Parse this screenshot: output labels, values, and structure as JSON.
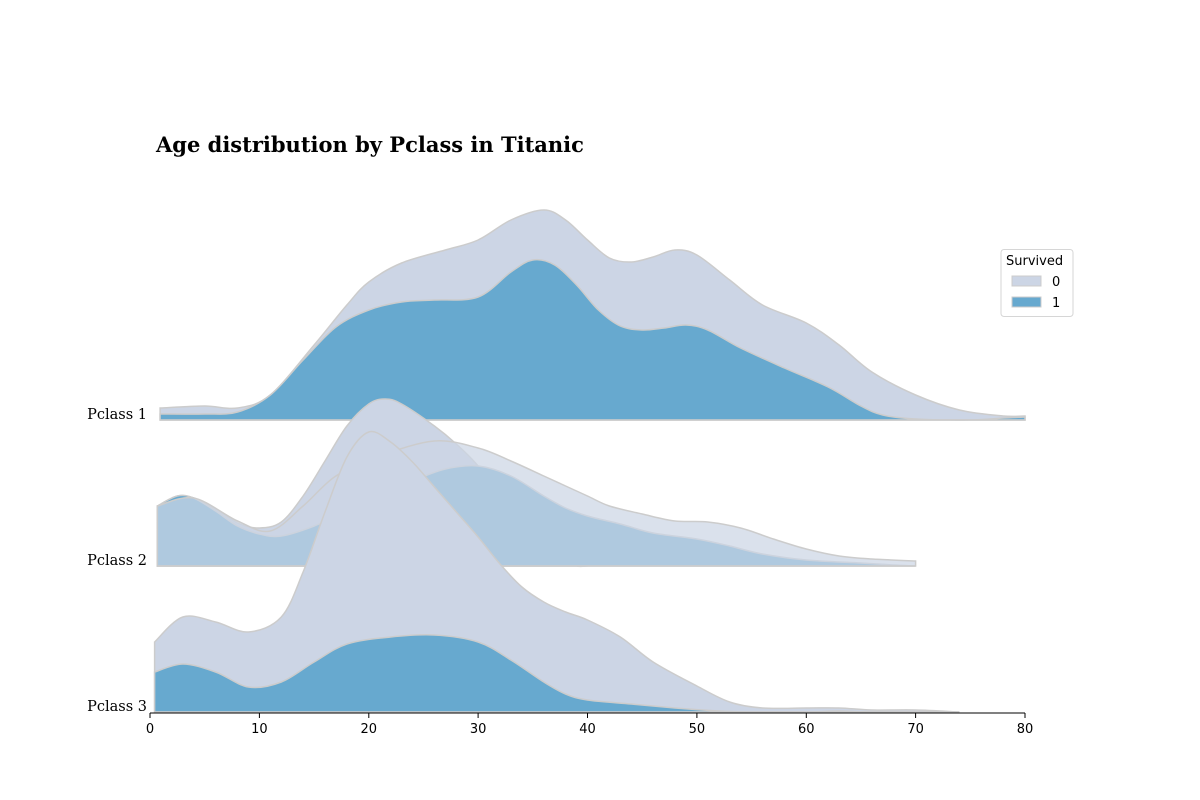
{
  "chart_data": {
    "type": "area",
    "title": "Age distribution by Pclass in Titanic",
    "xlabel": "",
    "ylabel": "",
    "xlim": [
      0,
      80
    ],
    "x_ticks": [
      "0",
      "10",
      "20",
      "30",
      "40",
      "50",
      "60",
      "70",
      "80"
    ],
    "grid": false,
    "legend": {
      "title": "Survived",
      "placement": "right",
      "entries": [
        "0",
        "1"
      ]
    },
    "colors": {
      "0": "#ccd5e5",
      "1": "#67a9cf",
      "edge": "#cccccc"
    },
    "rows": [
      {
        "label": "Pclass 1",
        "x_range": [
          0.92,
          80
        ],
        "series": [
          {
            "name": "0",
            "points": [
              [
                0.92,
                0.012
              ],
              [
                5,
                0.014
              ],
              [
                8,
                0.012
              ],
              [
                11,
                0.025
              ],
              [
                15,
                0.075
              ],
              [
                18,
                0.115
              ],
              [
                20,
                0.138
              ],
              [
                23,
                0.157
              ],
              [
                27,
                0.17
              ],
              [
                30,
                0.18
              ],
              [
                33,
                0.2
              ],
              [
                36,
                0.21
              ],
              [
                38,
                0.2
              ],
              [
                40,
                0.18
              ],
              [
                42,
                0.162
              ],
              [
                44,
                0.158
              ],
              [
                46,
                0.163
              ],
              [
                48,
                0.17
              ],
              [
                50,
                0.165
              ],
              [
                53,
                0.14
              ],
              [
                56,
                0.115
              ],
              [
                60,
                0.097
              ],
              [
                63,
                0.075
              ],
              [
                66,
                0.048
              ],
              [
                70,
                0.025
              ],
              [
                74,
                0.01
              ],
              [
                78,
                0.004
              ],
              [
                80,
                0.004
              ]
            ]
          },
          {
            "name": "1",
            "points": [
              [
                0.92,
                0.006
              ],
              [
                5,
                0.006
              ],
              [
                8,
                0.008
              ],
              [
                11,
                0.025
              ],
              [
                14,
                0.06
              ],
              [
                17,
                0.093
              ],
              [
                20,
                0.11
              ],
              [
                23,
                0.118
              ],
              [
                26,
                0.12
              ],
              [
                30,
                0.123
              ],
              [
                33,
                0.148
              ],
              [
                35,
                0.16
              ],
              [
                37,
                0.155
              ],
              [
                39,
                0.135
              ],
              [
                41,
                0.11
              ],
              [
                43,
                0.094
              ],
              [
                45,
                0.09
              ],
              [
                47,
                0.092
              ],
              [
                49,
                0.095
              ],
              [
                51,
                0.09
              ],
              [
                54,
                0.072
              ],
              [
                58,
                0.052
              ],
              [
                62,
                0.033
              ],
              [
                65,
                0.014
              ],
              [
                67,
                0.005
              ],
              [
                70,
                0.001
              ],
              [
                75,
                0.0
              ],
              [
                78,
                0.002
              ],
              [
                80,
                0.003
              ]
            ]
          }
        ]
      },
      {
        "label": "Pclass 2",
        "x_range": [
          0.67,
          70
        ],
        "series": [
          {
            "name": "0",
            "points": [
              [
                0.67,
                0.06
              ],
              [
                2.5,
                0.07
              ],
              [
                4,
                0.068
              ],
              [
                6,
                0.057
              ],
              [
                8,
                0.043
              ],
              [
                10,
                0.038
              ],
              [
                12,
                0.044
              ],
              [
                14,
                0.07
              ],
              [
                16,
                0.105
              ],
              [
                18,
                0.14
              ],
              [
                20,
                0.162
              ],
              [
                21.5,
                0.167
              ],
              [
                23,
                0.162
              ],
              [
                26,
                0.14
              ],
              [
                28,
                0.122
              ],
              [
                30,
                0.1
              ],
              [
                32,
                0.07
              ],
              [
                34,
                0.045
              ],
              [
                36,
                0.025
              ],
              [
                38,
                0.005
              ],
              [
                39,
                0.0
              ],
              [
                40,
                0.0
              ]
            ]
          },
          {
            "name": "1",
            "points": [
              [
                0.67,
                0.06
              ],
              [
                2.5,
                0.07
              ],
              [
                4,
                0.068
              ],
              [
                6,
                0.055
              ],
              [
                8,
                0.04
              ],
              [
                10,
                0.032
              ],
              [
                12,
                0.03
              ],
              [
                15,
                0.04
              ],
              [
                18,
                0.055
              ],
              [
                21,
                0.07
              ],
              [
                24,
                0.085
              ],
              [
                27,
                0.097
              ],
              [
                30,
                0.1
              ],
              [
                33,
                0.09
              ],
              [
                36,
                0.07
              ],
              [
                38,
                0.058
              ],
              [
                40,
                0.05
              ],
              [
                43,
                0.042
              ],
              [
                46,
                0.033
              ],
              [
                50,
                0.027
              ],
              [
                53,
                0.02
              ],
              [
                56,
                0.012
              ],
              [
                60,
                0.006
              ],
              [
                65,
                0.003
              ],
              [
                68,
                0.001
              ],
              [
                70,
                0.0
              ]
            ]
          },
          {
            "name": "0",
            "points": [
              [
                0.67,
                0.06
              ],
              [
                4,
                0.068
              ],
              [
                8,
                0.045
              ],
              [
                11,
                0.035
              ],
              [
                14,
                0.06
              ],
              [
                17,
                0.09
              ],
              [
                21,
                0.11
              ],
              [
                26,
                0.125
              ],
              [
                30,
                0.118
              ],
              [
                33,
                0.105
              ],
              [
                36,
                0.09
              ],
              [
                38,
                0.08
              ],
              [
                40,
                0.07
              ],
              [
                42,
                0.06
              ],
              [
                45,
                0.052
              ],
              [
                48,
                0.045
              ],
              [
                51,
                0.044
              ],
              [
                54,
                0.038
              ],
              [
                57,
                0.027
              ],
              [
                60,
                0.017
              ],
              [
                63,
                0.01
              ],
              [
                66,
                0.007
              ],
              [
                70,
                0.005
              ]
            ]
          }
        ]
      },
      {
        "label": "Pclass 3",
        "x_range": [
          0.42,
          74
        ],
        "series": [
          {
            "name": "0",
            "points": [
              [
                0.42,
                0.07
              ],
              [
                3,
                0.095
              ],
              [
                6,
                0.09
              ],
              [
                9,
                0.08
              ],
              [
                12,
                0.095
              ],
              [
                14,
                0.14
              ],
              [
                16,
                0.2
              ],
              [
                18,
                0.255
              ],
              [
                20,
                0.28
              ],
              [
                22,
                0.27
              ],
              [
                24,
                0.25
              ],
              [
                26,
                0.225
              ],
              [
                28,
                0.2
              ],
              [
                30,
                0.175
              ],
              [
                32,
                0.148
              ],
              [
                34,
                0.125
              ],
              [
                36,
                0.11
              ],
              [
                38,
                0.1
              ],
              [
                40,
                0.092
              ],
              [
                43,
                0.075
              ],
              [
                46,
                0.05
              ],
              [
                50,
                0.026
              ],
              [
                53,
                0.01
              ],
              [
                56,
                0.004
              ],
              [
                60,
                0.004
              ],
              [
                63,
                0.004
              ],
              [
                66,
                0.002
              ],
              [
                70,
                0.002
              ],
              [
                74,
                0.0
              ]
            ]
          },
          {
            "name": "1",
            "points": [
              [
                0.42,
                0.04
              ],
              [
                3,
                0.048
              ],
              [
                6,
                0.04
              ],
              [
                9,
                0.025
              ],
              [
                12,
                0.03
              ],
              [
                15,
                0.05
              ],
              [
                18,
                0.068
              ],
              [
                22,
                0.075
              ],
              [
                26,
                0.077
              ],
              [
                30,
                0.07
              ],
              [
                33,
                0.052
              ],
              [
                36,
                0.03
              ],
              [
                38,
                0.018
              ],
              [
                40,
                0.012
              ],
              [
                44,
                0.008
              ],
              [
                48,
                0.004
              ],
              [
                52,
                0.001
              ],
              [
                55,
                0.0
              ],
              [
                60,
                0.0
              ],
              [
                63,
                0.001
              ],
              [
                66,
                0.0
              ],
              [
                74,
                0.0
              ]
            ]
          }
        ]
      }
    ]
  }
}
